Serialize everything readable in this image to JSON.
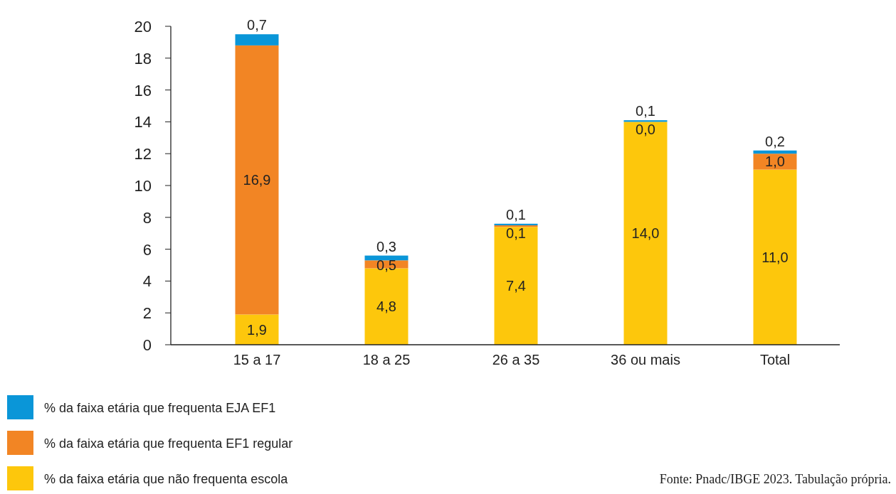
{
  "chart_data": {
    "type": "bar",
    "stacked": true,
    "categories": [
      "15 a 17",
      "18 a 25",
      "26 a 35",
      "36 ou mais",
      "Total"
    ],
    "series": [
      {
        "name": "% da faixa etária que não frequenta escola",
        "color": "#fdc70c",
        "values": [
          1.9,
          4.8,
          7.4,
          14.0,
          11.0
        ],
        "value_labels": [
          "1,9",
          "4,8",
          "7,4",
          "14,0",
          "11,0"
        ]
      },
      {
        "name": "% da faixa etária que frequenta EF1 regular",
        "color": "#f28524",
        "values": [
          16.9,
          0.5,
          0.1,
          0.0,
          1.0
        ],
        "value_labels": [
          "16,9",
          "0,5",
          "0,1",
          "0,0",
          "1,0"
        ]
      },
      {
        "name": "% da faixa etária que frequenta EJA EF1",
        "color": "#0a96d8",
        "values": [
          0.7,
          0.3,
          0.1,
          0.1,
          0.2
        ],
        "value_labels": [
          "0,7",
          "0,3",
          "0,1",
          "0,1",
          "0,2"
        ]
      }
    ],
    "ylim": [
      0,
      20
    ],
    "yticks": [
      0,
      2,
      4,
      6,
      8,
      10,
      12,
      14,
      16,
      18,
      20
    ],
    "grid": false,
    "legend": "bottom left",
    "annotations": [
      "Fonte: Pnadc/IBGE 2023. Tabulação própria."
    ]
  }
}
